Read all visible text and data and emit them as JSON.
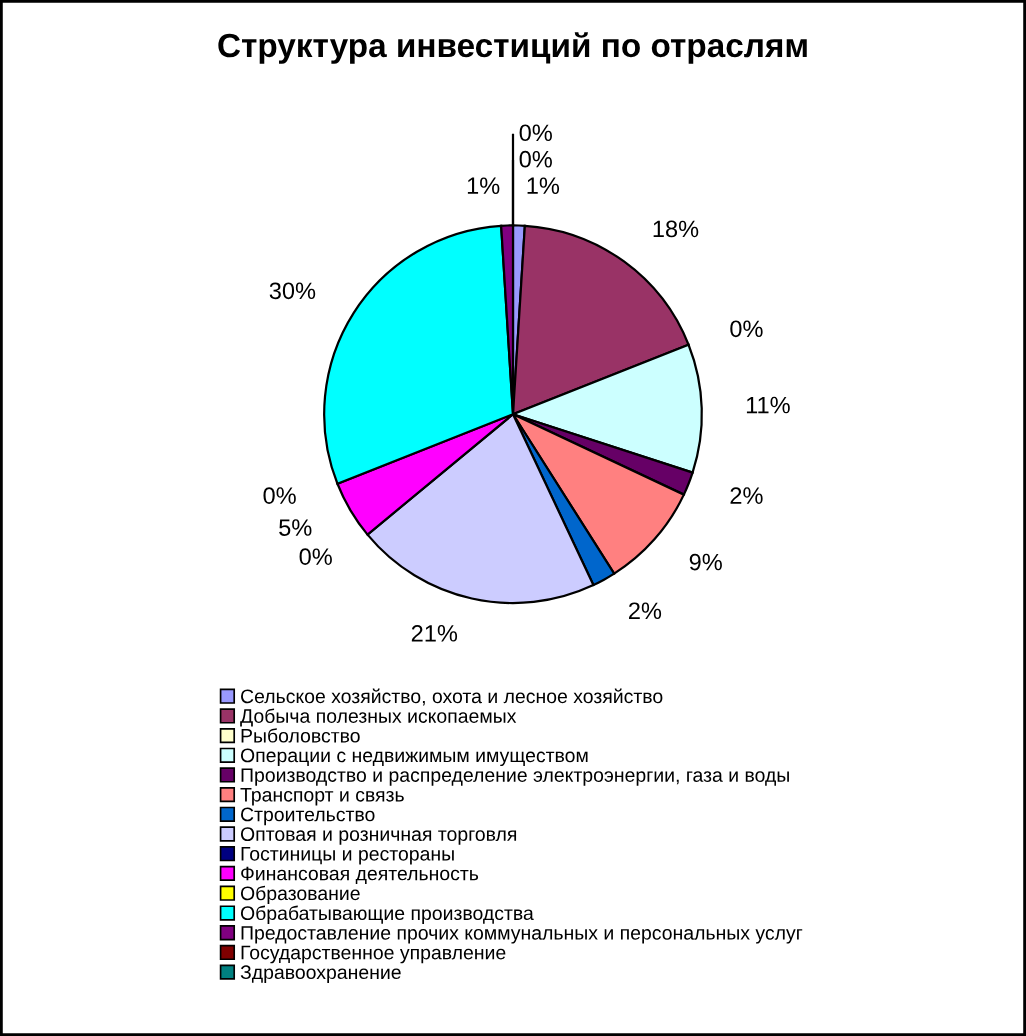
{
  "chart_data": {
    "type": "pie",
    "title": "Структура инвестиций по отраслям",
    "categories": [
      "Сельское хозяйство, охота и лесное хозяйство",
      "Добыча полезных ископаемых",
      "Рыболовство",
      "Операции с недвижимым имуществом",
      "Производство и распределение электроэнергии, газа и воды",
      "Транспорт и связь",
      "Строительство",
      "Оптовая и розничная торговля",
      "Гостиницы и рестораны",
      "Финансовая деятельность",
      "Образование",
      "Обрабатывающие производства",
      "Предоставление прочих коммунальных и персональных услуг",
      "Государственное управление",
      "Здравоохранение"
    ],
    "values": [
      1,
      18,
      0,
      11,
      2,
      9,
      2,
      21,
      0,
      5,
      0,
      30,
      1,
      0,
      0
    ],
    "colors": [
      "#9999ff",
      "#993366",
      "#ffffcc",
      "#ccffff",
      "#660066",
      "#ff8080",
      "#0066cc",
      "#ccccff",
      "#000080",
      "#ff00ff",
      "#ffff00",
      "#00ffff",
      "#800080",
      "#800000",
      "#008080"
    ],
    "value_labels": [
      "1%",
      "18%",
      "0%",
      "11%",
      "2%",
      "9%",
      "2%",
      "21%",
      "0%",
      "5%",
      "0%",
      "30%",
      "1%",
      "0%",
      "0%"
    ],
    "legend": "bottom"
  }
}
